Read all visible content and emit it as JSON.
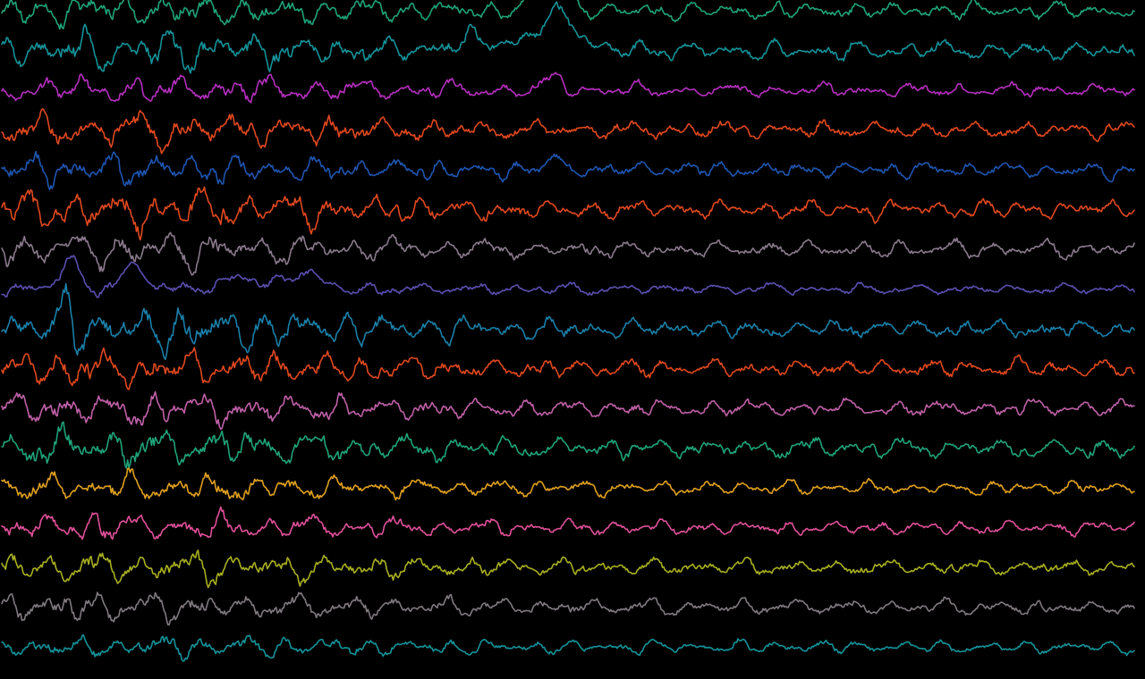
{
  "chart_data": {
    "type": "line",
    "title": "",
    "xlabel": "",
    "ylabel": "",
    "background": "#000000",
    "grid": false,
    "legend": "none",
    "series": [
      {
        "color": "#1fa37a",
        "amplitude": 0.55,
        "early_burst": 1.0,
        "events": [
          {
            "x": 0.485,
            "height": -1.6,
            "width": 0.02
          }
        ]
      },
      {
        "color": "#14939a",
        "amplitude": 0.6,
        "early_burst": 1.2,
        "events": [
          {
            "x": 0.492,
            "height": -1.8,
            "width": 0.025
          },
          {
            "x": 0.425,
            "height": -0.5,
            "width": 0.04
          }
        ]
      },
      {
        "color": "#b52fbf",
        "amplitude": 0.45,
        "early_burst": 1.1,
        "events": [
          {
            "x": 0.488,
            "height": -0.7,
            "width": 0.01
          }
        ]
      },
      {
        "color": "#e0481f",
        "amplitude": 0.55,
        "early_burst": 1.3,
        "events": []
      },
      {
        "color": "#1f55b0",
        "amplitude": 0.5,
        "early_burst": 1.3,
        "events": [
          {
            "x": 0.488,
            "height": -0.6,
            "width": 0.008
          }
        ]
      },
      {
        "color": "#e0481f",
        "amplitude": 0.6,
        "early_burst": 1.4,
        "events": []
      },
      {
        "color": "#8a7a8c",
        "amplitude": 0.55,
        "early_burst": 1.2,
        "events": []
      },
      {
        "color": "#5a4fb0",
        "amplitude": 0.35,
        "early_burst": 0.6,
        "events": [
          {
            "x": 0.06,
            "height": -1.4,
            "width": 0.012
          },
          {
            "x": 0.118,
            "height": -1.1,
            "width": 0.015
          },
          {
            "x": 0.21,
            "height": -0.8,
            "width": 0.015
          },
          {
            "x": 0.265,
            "height": -1.0,
            "width": 0.018
          }
        ]
      },
      {
        "color": "#1a7fa8",
        "amplitude": 0.6,
        "early_burst": 1.5,
        "events": [
          {
            "x": 0.057,
            "height": -1.3,
            "width": 0.006
          }
        ]
      },
      {
        "color": "#e0481f",
        "amplitude": 0.6,
        "early_burst": 1.3,
        "events": []
      },
      {
        "color": "#c060a8",
        "amplitude": 0.55,
        "early_burst": 1.2,
        "events": []
      },
      {
        "color": "#1fa37a",
        "amplitude": 0.65,
        "early_burst": 1.1,
        "events": []
      },
      {
        "color": "#e0a01f",
        "amplitude": 0.45,
        "early_burst": 1.3,
        "events": []
      },
      {
        "color": "#e0509a",
        "amplitude": 0.45,
        "early_burst": 1.2,
        "events": []
      },
      {
        "color": "#a8b020",
        "amplitude": 0.5,
        "early_burst": 1.2,
        "events": []
      },
      {
        "color": "#807a80",
        "amplitude": 0.5,
        "early_burst": 1.2,
        "events": []
      },
      {
        "color": "#14939a",
        "amplitude": 0.4,
        "early_burst": 1.0,
        "events": []
      }
    ]
  }
}
